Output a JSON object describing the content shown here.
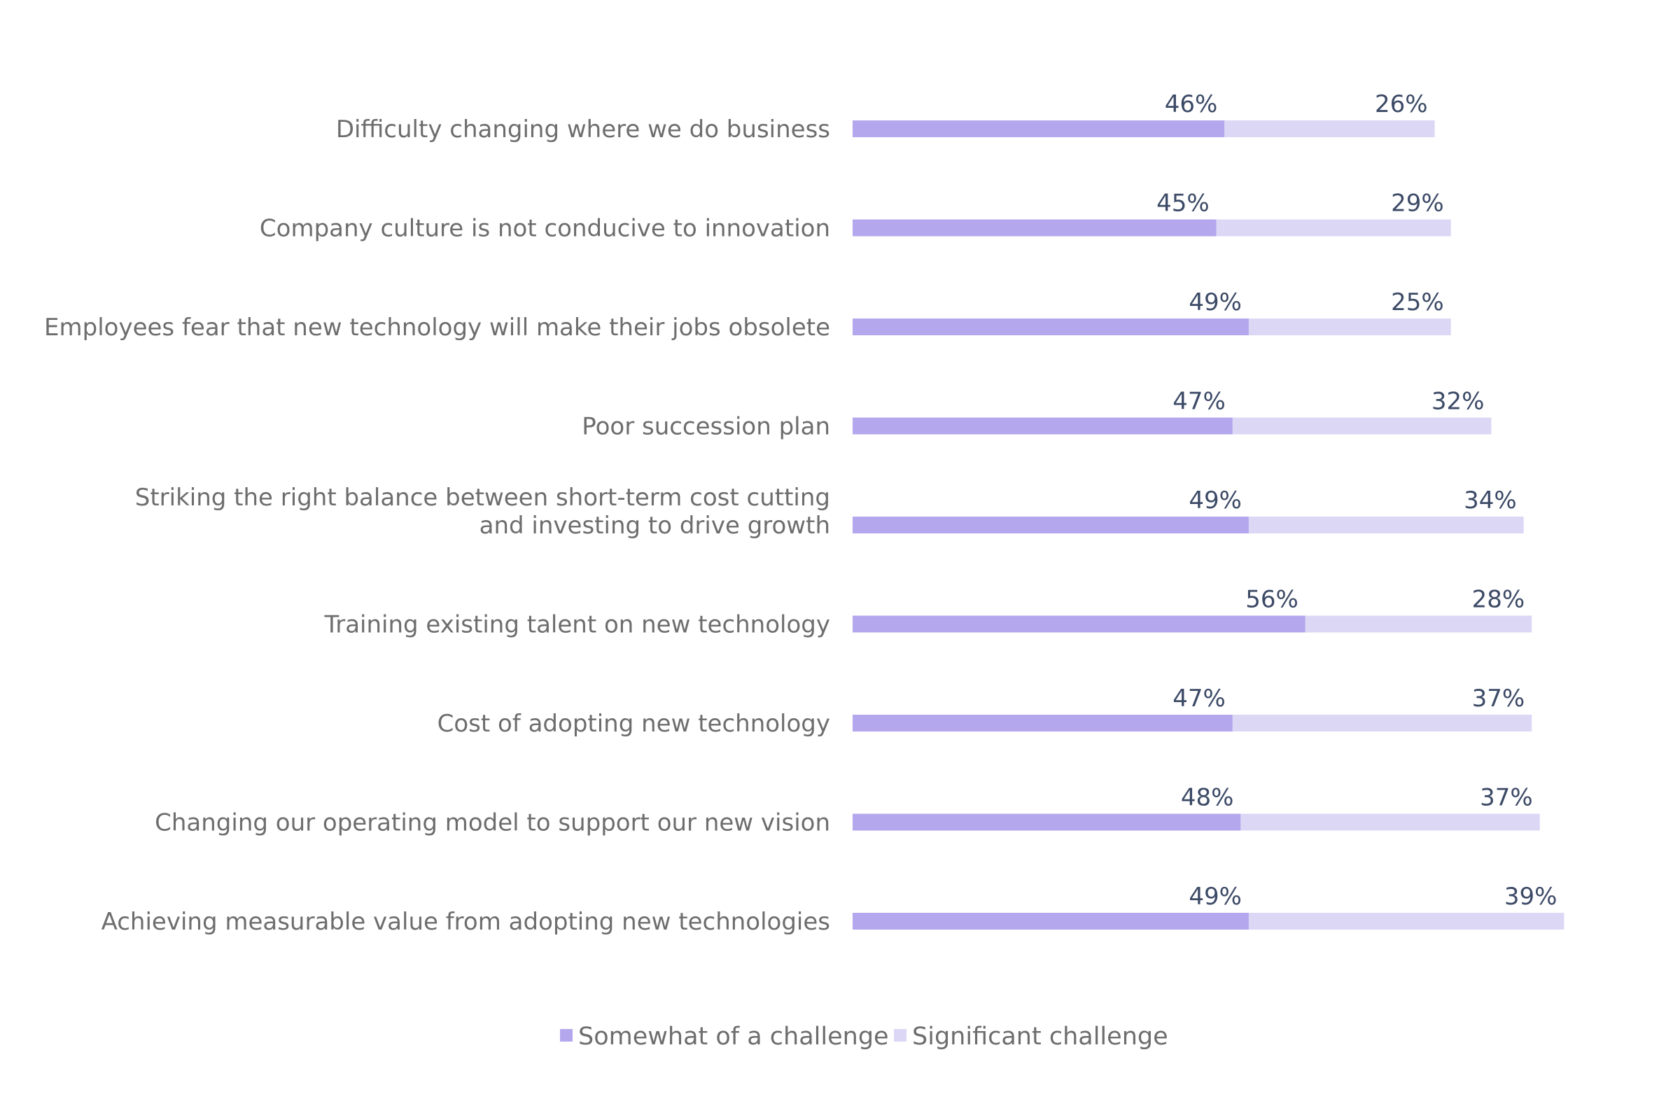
{
  "chart_data": {
    "type": "bar",
    "orientation": "horizontal",
    "stacked": true,
    "categories": [
      [
        "Difficulty changing where we do business"
      ],
      [
        "Company culture is not conducive to innovation"
      ],
      [
        "Employees fear that new technology will make their jobs obsolete"
      ],
      [
        "Poor succession plan"
      ],
      [
        "Striking the right balance between short-term cost cutting",
        "and investing to drive growth"
      ],
      [
        "Training existing talent on new technology"
      ],
      [
        "Cost of adopting new technology"
      ],
      [
        "Changing our operating model to support our new vision"
      ],
      [
        "Achieving measurable value from adopting new technologies"
      ]
    ],
    "series": [
      {
        "name": "Somewhat of a challenge",
        "color": "#b4a7ed",
        "values": [
          46,
          45,
          49,
          47,
          49,
          56,
          47,
          48,
          49
        ],
        "labels": [
          "46%",
          "45%",
          "49%",
          "47%",
          "49%",
          "56%",
          "47%",
          "48%",
          "49%"
        ]
      },
      {
        "name": "Significant challenge",
        "color": "#ddd7f6",
        "values": [
          26,
          29,
          25,
          32,
          34,
          28,
          37,
          37,
          39
        ],
        "labels": [
          "26%",
          "29%",
          "25%",
          "32%",
          "34%",
          "28%",
          "37%",
          "37%",
          "39%"
        ]
      }
    ],
    "xlim": [
      0,
      100
    ],
    "grid": false,
    "legend": "bottom-center"
  }
}
